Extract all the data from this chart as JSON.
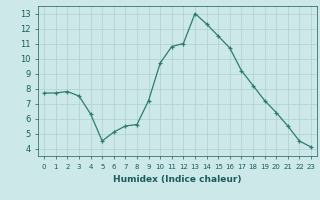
{
  "x": [
    0,
    1,
    2,
    3,
    4,
    5,
    6,
    7,
    8,
    9,
    10,
    11,
    12,
    13,
    14,
    15,
    16,
    17,
    18,
    19,
    20,
    21,
    22,
    23
  ],
  "y": [
    7.7,
    7.7,
    7.8,
    7.5,
    6.3,
    4.5,
    5.1,
    5.5,
    5.6,
    7.2,
    9.7,
    10.8,
    11.0,
    13.0,
    12.3,
    11.5,
    10.7,
    9.2,
    8.2,
    7.2,
    6.4,
    5.5,
    4.5,
    4.1
  ],
  "xlabel": "Humidex (Indice chaleur)",
  "ylim": [
    3.5,
    13.5
  ],
  "xlim": [
    -0.5,
    23.5
  ],
  "yticks": [
    4,
    5,
    6,
    7,
    8,
    9,
    10,
    11,
    12,
    13
  ],
  "xtick_labels": [
    "0",
    "1",
    "2",
    "3",
    "4",
    "5",
    "6",
    "7",
    "8",
    "9",
    "10",
    "11",
    "12",
    "13",
    "14",
    "15",
    "16",
    "17",
    "18",
    "19",
    "20",
    "21",
    "22",
    "23"
  ],
  "line_color": "#2d7d6e",
  "marker": "+",
  "bg_color": "#cce8e8",
  "grid_color": "#aed0d0",
  "text_color": "#1a5c5c"
}
